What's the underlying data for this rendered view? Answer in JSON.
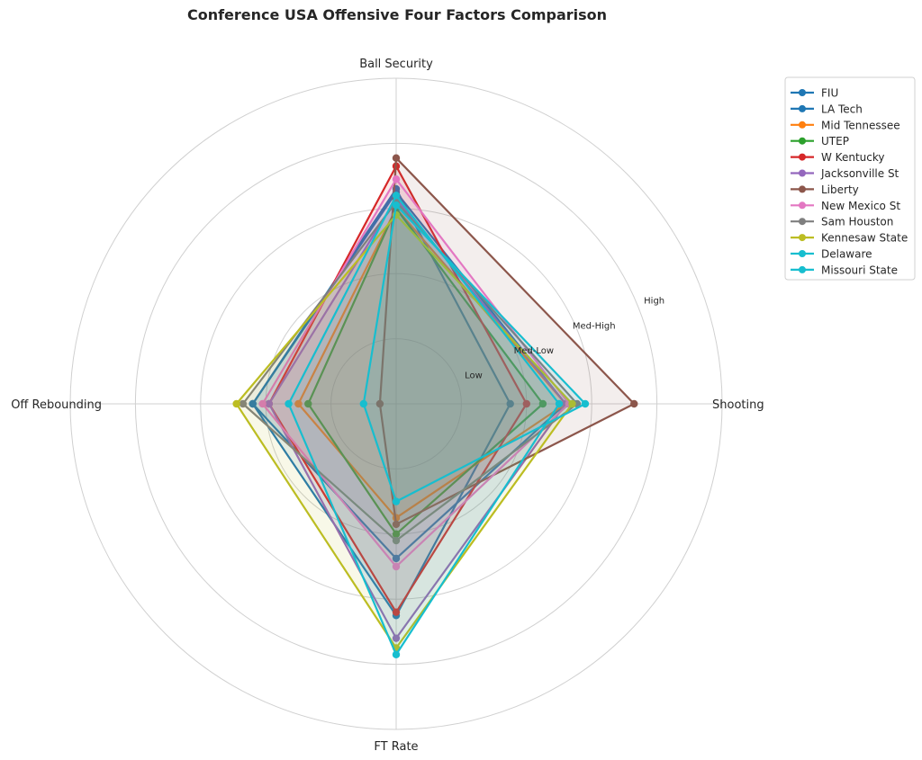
{
  "chart_data": {
    "type": "radar",
    "title": "Conference USA Offensive Four Factors Comparison",
    "axes": [
      "Ball Security",
      "Shooting",
      "FT Rate",
      "Off Rebounding"
    ],
    "radial_ticks": [
      0.2,
      0.4,
      0.6,
      0.8
    ],
    "radial_tick_labels": [
      "Low",
      "Med-Low",
      "Med-High",
      "High"
    ],
    "rlim": [
      0,
      1
    ],
    "grid": true,
    "legend_placement": "upper-right outside",
    "series": [
      {
        "name": "FIU",
        "color": "#1f77b4",
        "values": [
          0.66,
          0.35,
          0.65,
          0.44
        ]
      },
      {
        "name": "LA Tech",
        "color": "#1f77b4",
        "values": [
          0.65,
          0.52,
          0.475,
          0.44
        ]
      },
      {
        "name": "Mid Tennessee",
        "color": "#ff7f0e",
        "values": [
          0.6,
          0.52,
          0.35,
          0.3
        ]
      },
      {
        "name": "UTEP",
        "color": "#2ca02c",
        "values": [
          0.6,
          0.45,
          0.4,
          0.27
        ]
      },
      {
        "name": "W Kentucky",
        "color": "#d62728",
        "values": [
          0.73,
          0.4,
          0.64,
          0.39
        ]
      },
      {
        "name": "Jacksonville St",
        "color": "#9467bd",
        "values": [
          0.63,
          0.52,
          0.72,
          0.39
        ]
      },
      {
        "name": "Liberty",
        "color": "#8c564b",
        "values": [
          0.755,
          0.73,
          0.37,
          0.05
        ]
      },
      {
        "name": "New Mexico St",
        "color": "#e377c2",
        "values": [
          0.69,
          0.53,
          0.5,
          0.41
        ]
      },
      {
        "name": "Sam Houston",
        "color": "#7f7f7f",
        "values": [
          0.62,
          0.555,
          0.42,
          0.47
        ]
      },
      {
        "name": "Kennesaw State",
        "color": "#bcbd22",
        "values": [
          0.58,
          0.54,
          0.75,
          0.49
        ]
      },
      {
        "name": "Delaware",
        "color": "#17becf",
        "values": [
          0.64,
          0.5,
          0.77,
          0.33
        ]
      },
      {
        "name": "Missouri State",
        "color": "#17becf",
        "values": [
          0.61,
          0.58,
          0.3,
          0.1
        ]
      }
    ]
  }
}
